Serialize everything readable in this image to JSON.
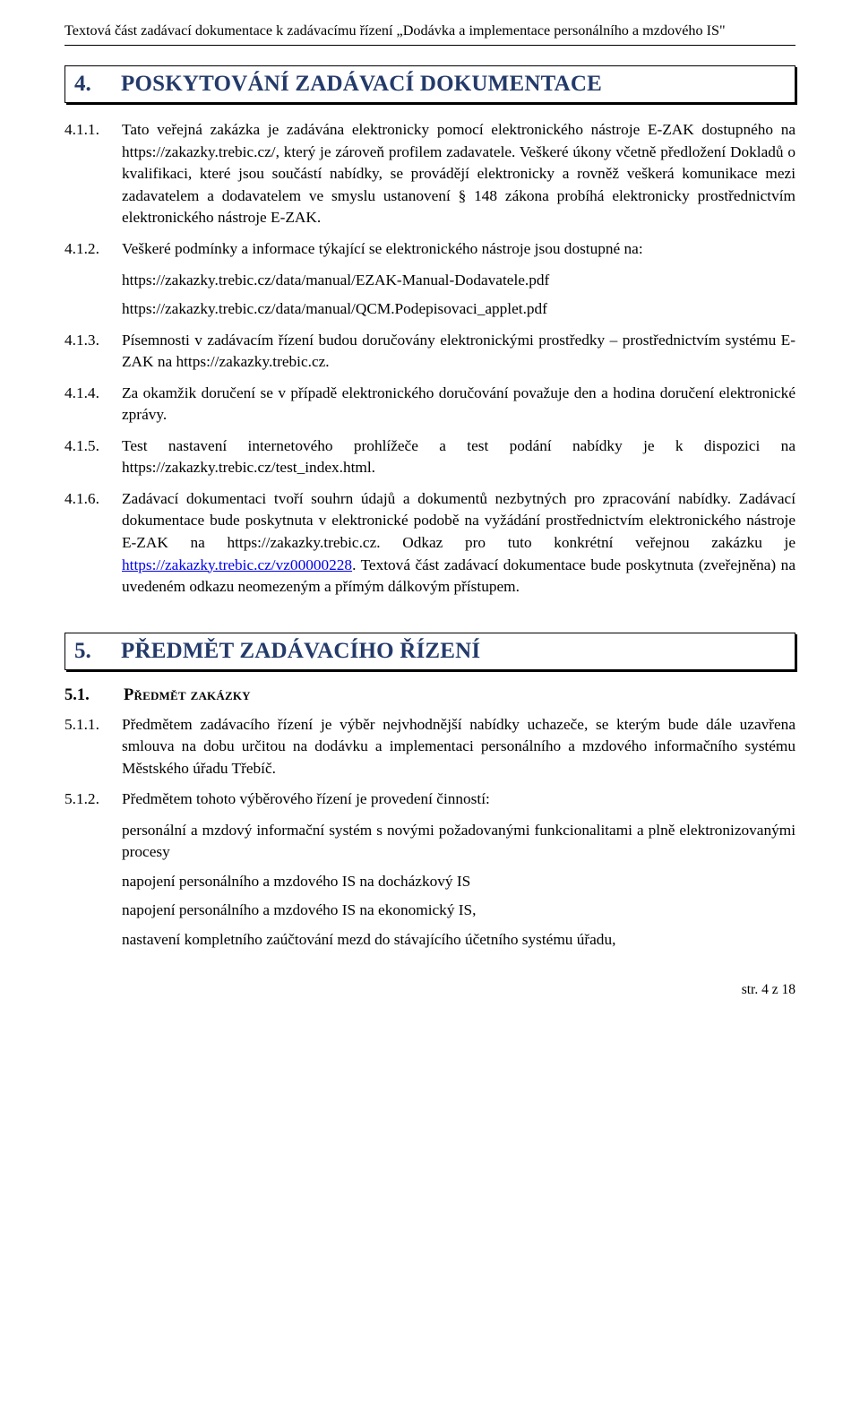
{
  "header": "Textová část zadávací dokumentace k zadávacímu řízení „Dodávka a implementace personálního a mzdového IS\"",
  "section4": {
    "num": "4.",
    "title": "POSKYTOVÁNÍ ZADÁVACÍ DOKUMENTACE",
    "items": {
      "n411": "4.1.1.",
      "t411": "Tato veřejná zakázka je zadávána elektronicky pomocí elektronického nástroje E-ZAK dostupného na https://zakazky.trebic.cz/, který je zároveň profilem zadavatele. Veškeré úkony včetně předložení Dokladů o kvalifikaci, které jsou součástí nabídky, se provádějí elektronicky a rovněž veškerá komunikace mezi zadavatelem a dodavatelem ve smyslu ustanovení § 148 zákona probíhá elektronicky prostřednictvím elektronického nástroje E-ZAK.",
      "n412": "4.1.2.",
      "t412": "Veškeré podmínky a informace týkající se elektronického nástroje jsou dostupné na:",
      "link412a": "https://zakazky.trebic.cz/data/manual/EZAK-Manual-Dodavatele.pdf",
      "link412b": "https://zakazky.trebic.cz/data/manual/QCM.Podepisovaci_applet.pdf",
      "n413": "4.1.3.",
      "t413": "Písemnosti v zadávacím řízení budou doručovány elektronickými prostředky – prostřednictvím systému E-ZAK na https://zakazky.trebic.cz.",
      "n414": "4.1.4.",
      "t414": "Za okamžik doručení se v případě elektronického doručování považuje den a hodina doručení elektronické zprávy.",
      "n415": "4.1.5.",
      "t415": "Test nastavení internetového prohlížeče a test podání nabídky je k dispozici na https://zakazky.trebic.cz/test_index.html.",
      "n416": "4.1.6.",
      "t416a": "Zadávací dokumentaci tvoří souhrn údajů a dokumentů nezbytných pro zpracování nabídky. Zadávací dokumentace bude poskytnuta v elektronické podobě na vyžádání prostřednictvím elektronického nástroje E-ZAK na https://zakazky.trebic.cz. Odkaz pro tuto konkrétní veřejnou zakázku je ",
      "link416": "https://zakazky.trebic.cz/vz00000228",
      "t416b": ". Textová část zadávací dokumentace bude poskytnuta (zveřejněna) na uvedeném odkazu neomezeným a přímým dálkovým přístupem."
    }
  },
  "section5": {
    "num": "5.",
    "title": "PŘEDMĚT ZADÁVACÍHO ŘÍZENÍ",
    "sub51": {
      "num": "5.1.",
      "title": "Předmět zakázky"
    },
    "items": {
      "n511": "5.1.1.",
      "t511": "Předmětem zadávacího řízení je výběr nejvhodnější nabídky uchazeče, se kterým bude dále uzavřena smlouva na dobu určitou na dodávku a implementaci personálního a mzdového informačního systému Městského úřadu Třebíč.",
      "n512": "5.1.2.",
      "t512": "Předmětem tohoto výběrového řízení je provedení činností:",
      "b1": "personální a mzdový informační systém s novými požadovanými funkcionalitami a plně elektronizovanými procesy",
      "b2": "napojení personálního a mzdového IS na docházkový IS",
      "b3": "napojení personálního a mzdového IS na ekonomický IS,",
      "b4": "nastavení kompletního zaúčtování mezd do stávajícího účetního systému úřadu,"
    }
  },
  "footer": "str. 4 z 18"
}
